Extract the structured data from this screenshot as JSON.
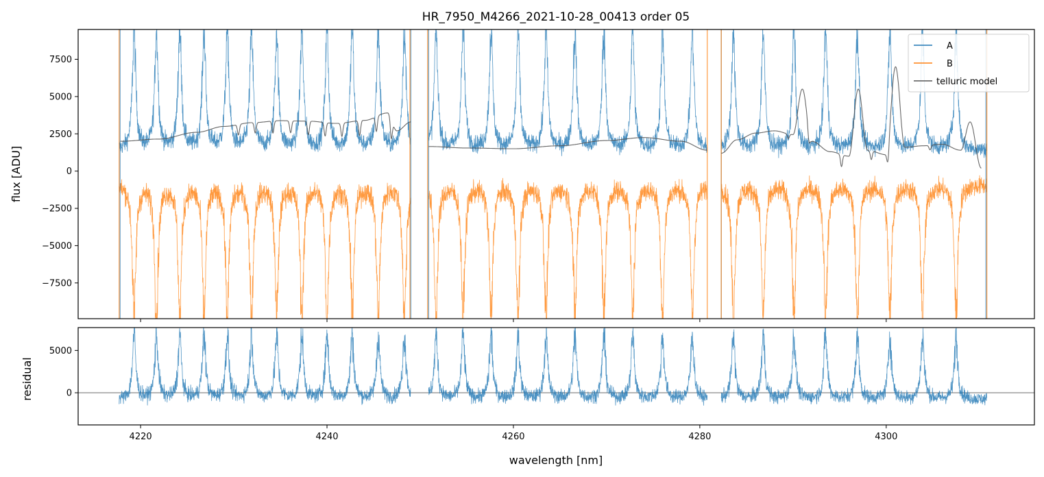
{
  "chart_data": [
    {
      "type": "line",
      "panel": "main",
      "title": "HR_7950_M4266_2021-10-28_00413  order 05",
      "xlabel": "",
      "ylabel": "flux [ADU]",
      "xlim": [
        4213.3,
        4315.9
      ],
      "ylim": [
        -9900,
        9500
      ],
      "y_ticks": [
        -7500,
        -5000,
        -2500,
        0,
        2500,
        5000,
        7500
      ],
      "y_tick_labels": [
        "−7500",
        "−5000",
        "−2500",
        "0",
        "2500",
        "5000",
        "7500"
      ],
      "x_ticks": [
        4220,
        4240,
        4260,
        4280,
        4300
      ],
      "x_tick_labels_visible": false,
      "grid": false,
      "legend_position": "top-right",
      "segments": [
        [
          4217.7,
          4249.0
        ],
        [
          4250.9,
          4280.8
        ],
        [
          4282.3,
          4310.8
        ]
      ],
      "peak_centers": [
        4219.3,
        4221.7,
        4224.2,
        4226.8,
        4229.3,
        4231.9,
        4234.6,
        4237.3,
        4240.0,
        4242.7,
        4245.5,
        4248.3,
        4251.7,
        4254.6,
        4257.6,
        4260.5,
        4263.5,
        4266.6,
        4269.7,
        4272.8,
        4276.0,
        4279.2,
        4283.6,
        4286.8,
        4290.1,
        4293.5,
        4296.9,
        4300.4,
        4303.9,
        4307.5
      ],
      "spike_positions_A": [
        4217.8,
        4249.0,
        4250.9,
        4282.3,
        4310.7
      ],
      "spike_positions_B": [
        4217.7,
        4248.9,
        4250.8,
        4280.8,
        4282.3,
        4310.8
      ],
      "series": [
        {
          "name": "A",
          "color": "#1f77b4",
          "baseline": 1400,
          "peak_amplitude": 8000,
          "noise": 500
        },
        {
          "name": "B",
          "color": "#ff7f0e",
          "baseline": -900,
          "trough_amplitude": -9000,
          "noise": 600
        },
        {
          "name": "telluric model",
          "color": "#555555",
          "points": [
            [
              4217.8,
              2000
            ],
            [
              4222,
              2150
            ],
            [
              4226,
              2600
            ],
            [
              4229,
              3000
            ],
            [
              4232,
              3250
            ],
            [
              4235,
              3380
            ],
            [
              4238,
              3350
            ],
            [
              4241,
              3200
            ],
            [
              4244,
              3400
            ],
            [
              4246.5,
              3900
            ],
            [
              4247.5,
              2700
            ],
            [
              4249.0,
              3300
            ],
            [
              4250.9,
              1650
            ],
            [
              4255,
              1550
            ],
            [
              4260,
              1500
            ],
            [
              4265,
              1700
            ],
            [
              4270,
              2050
            ],
            [
              4274,
              2250
            ],
            [
              4278,
              2000
            ],
            [
              4280.8,
              1400
            ],
            [
              4282.3,
              1200
            ],
            [
              4284,
              2100
            ],
            [
              4286,
              2550
            ],
            [
              4288,
              2700
            ],
            [
              4290,
              2450
            ],
            [
              4291,
              5500
            ],
            [
              4292,
              2000
            ],
            [
              4294,
              1300
            ],
            [
              4296,
              1000
            ],
            [
              4297,
              5500
            ],
            [
              4298,
              1400
            ],
            [
              4300,
              1100
            ],
            [
              4301,
              7000
            ],
            [
              4302,
              1600
            ],
            [
              4304,
              1700
            ],
            [
              4306,
              1800
            ],
            [
              4308,
              1400
            ],
            [
              4309,
              3300
            ],
            [
              4310.2,
              200
            ]
          ],
          "dips": [
            [
              4230.5,
              -700
            ],
            [
              4232.3,
              -700
            ],
            [
              4234.2,
              -800
            ],
            [
              4236.1,
              -800
            ],
            [
              4238.0,
              -900
            ],
            [
              4239.8,
              -900
            ],
            [
              4241.6,
              -900
            ],
            [
              4243.5,
              -1000
            ],
            [
              4245.3,
              -1000
            ],
            [
              4246.9,
              -1300
            ],
            [
              4289.5,
              -300
            ],
            [
              4291.7,
              -700
            ],
            [
              4295.2,
              -800
            ],
            [
              4298.4,
              -600
            ],
            [
              4300.2,
              -900
            ],
            [
              4304.7,
              -300
            ]
          ]
        }
      ]
    },
    {
      "type": "line",
      "panel": "residual",
      "title": "",
      "xlabel": "wavelength [nm]",
      "ylabel": "residual",
      "xlim": [
        4213.3,
        4315.9
      ],
      "ylim": [
        -3800,
        7700
      ],
      "y_ticks": [
        0,
        5000
      ],
      "y_tick_labels": [
        "0",
        "5000"
      ],
      "x_ticks": [
        4220,
        4240,
        4260,
        4280,
        4300
      ],
      "x_tick_labels": [
        "4220",
        "4240",
        "4260",
        "4280",
        "4300"
      ],
      "grid": false,
      "zero_line": 0,
      "series": [
        {
          "color": "#1f77b4",
          "baseline": -800,
          "peak_amplitude": 7500,
          "noise": 700
        }
      ]
    }
  ],
  "legend": {
    "items": [
      {
        "label": "A",
        "color": "#1f77b4"
      },
      {
        "label": "B",
        "color": "#ff7f0e"
      },
      {
        "label": "telluric model",
        "color": "#555555"
      }
    ]
  }
}
